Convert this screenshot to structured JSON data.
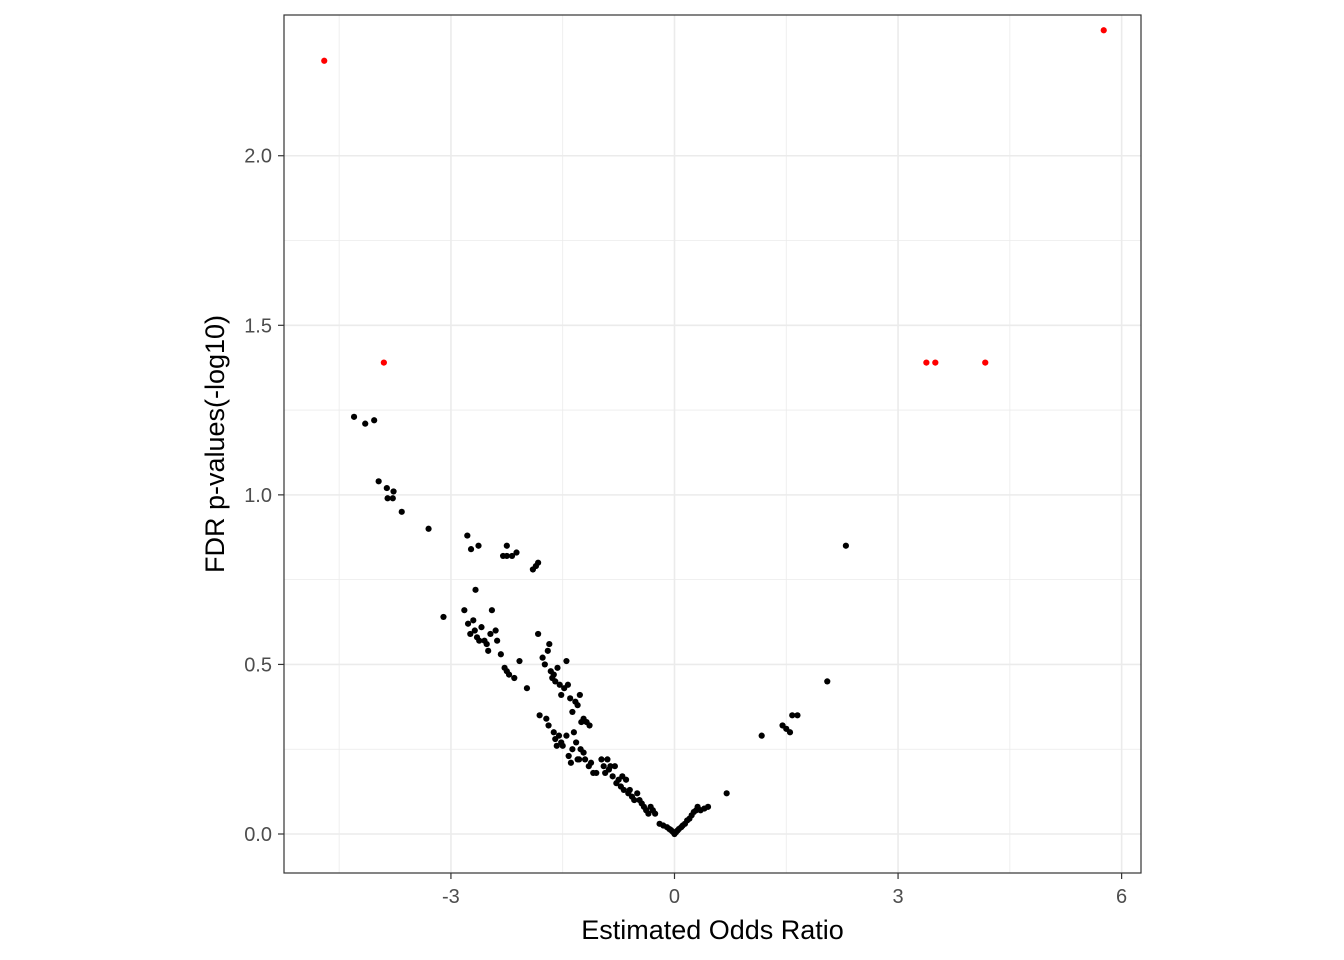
{
  "chart_data": {
    "type": "scatter",
    "title": "",
    "xlabel": "Estimated Odds Ratio",
    "ylabel": "FDR p-values(-log10)",
    "xlim": [
      -5.24,
      6.26
    ],
    "ylim": [
      -0.115,
      2.415
    ],
    "x_ticks": [
      -3,
      0,
      3,
      6
    ],
    "x_tick_labels": [
      "-3",
      "0",
      "3",
      "6"
    ],
    "y_ticks": [
      0.0,
      0.5,
      1.0,
      1.5,
      2.0
    ],
    "y_tick_labels": [
      "0.0",
      "0.5",
      "1.0",
      "1.5",
      "2.0"
    ],
    "grid": true,
    "legend": "none",
    "colors": {
      "significant": "#ff0000",
      "other": "#000000",
      "grid": "#ebebeb",
      "panel_border": "#333333"
    },
    "series": [
      {
        "color": "#ff0000",
        "points": [
          [
            -4.7,
            2.28
          ],
          [
            -3.9,
            1.39
          ],
          [
            5.76,
            2.37
          ],
          [
            3.38,
            1.39
          ],
          [
            3.5,
            1.39
          ],
          [
            4.17,
            1.39
          ]
        ]
      },
      {
        "color": "#000000",
        "points": [
          [
            -4.3,
            1.23
          ],
          [
            -4.15,
            1.21
          ],
          [
            -4.03,
            1.22
          ],
          [
            -3.97,
            1.04
          ],
          [
            -3.86,
            1.02
          ],
          [
            -3.85,
            0.99
          ],
          [
            -3.77,
            1.01
          ],
          [
            -3.78,
            0.99
          ],
          [
            -3.66,
            0.95
          ],
          [
            -3.3,
            0.9
          ],
          [
            -2.78,
            0.88
          ],
          [
            -2.73,
            0.84
          ],
          [
            -2.63,
            0.85
          ],
          [
            -2.67,
            0.72
          ],
          [
            -2.25,
            0.85
          ],
          [
            -2.3,
            0.82
          ],
          [
            -2.25,
            0.82
          ],
          [
            -2.18,
            0.82
          ],
          [
            -2.12,
            0.83
          ],
          [
            -1.9,
            0.78
          ],
          [
            -1.86,
            0.79
          ],
          [
            -1.83,
            0.8
          ],
          [
            -3.1,
            0.64
          ],
          [
            -2.82,
            0.66
          ],
          [
            -2.77,
            0.62
          ],
          [
            -2.74,
            0.59
          ],
          [
            -2.7,
            0.63
          ],
          [
            -2.68,
            0.6
          ],
          [
            -2.65,
            0.58
          ],
          [
            -2.62,
            0.57
          ],
          [
            -2.59,
            0.61
          ],
          [
            -2.55,
            0.57
          ],
          [
            -2.52,
            0.56
          ],
          [
            -2.5,
            0.54
          ],
          [
            -2.45,
            0.66
          ],
          [
            -2.47,
            0.59
          ],
          [
            -2.4,
            0.6
          ],
          [
            -2.38,
            0.57
          ],
          [
            -2.33,
            0.53
          ],
          [
            -2.28,
            0.49
          ],
          [
            -2.25,
            0.48
          ],
          [
            -2.22,
            0.47
          ],
          [
            -2.15,
            0.46
          ],
          [
            -2.08,
            0.51
          ],
          [
            -1.98,
            0.43
          ],
          [
            -1.83,
            0.59
          ],
          [
            -1.77,
            0.52
          ],
          [
            -1.74,
            0.5
          ],
          [
            -1.7,
            0.54
          ],
          [
            -1.68,
            0.56
          ],
          [
            -1.66,
            0.48
          ],
          [
            -1.64,
            0.46
          ],
          [
            -1.62,
            0.47
          ],
          [
            -1.6,
            0.45
          ],
          [
            -1.57,
            0.49
          ],
          [
            -1.54,
            0.44
          ],
          [
            -1.52,
            0.41
          ],
          [
            -1.48,
            0.43
          ],
          [
            -1.45,
            0.51
          ],
          [
            -1.43,
            0.44
          ],
          [
            -1.4,
            0.4
          ],
          [
            -1.37,
            0.36
          ],
          [
            -1.33,
            0.39
          ],
          [
            -1.3,
            0.38
          ],
          [
            -1.27,
            0.41
          ],
          [
            -1.25,
            0.33
          ],
          [
            -1.22,
            0.34
          ],
          [
            -1.18,
            0.33
          ],
          [
            -1.14,
            0.32
          ],
          [
            -1.81,
            0.35
          ],
          [
            -1.72,
            0.34
          ],
          [
            -1.69,
            0.32
          ],
          [
            -1.62,
            0.3
          ],
          [
            -1.6,
            0.28
          ],
          [
            -1.58,
            0.26
          ],
          [
            -1.55,
            0.29
          ],
          [
            -1.52,
            0.27
          ],
          [
            -1.5,
            0.26
          ],
          [
            -1.45,
            0.29
          ],
          [
            -1.42,
            0.23
          ],
          [
            -1.39,
            0.21
          ],
          [
            -1.37,
            0.25
          ],
          [
            -1.35,
            0.3
          ],
          [
            -1.32,
            0.27
          ],
          [
            -1.3,
            0.22
          ],
          [
            -1.28,
            0.22
          ],
          [
            -1.26,
            0.25
          ],
          [
            -1.22,
            0.24
          ],
          [
            -1.2,
            0.22
          ],
          [
            -1.15,
            0.2
          ],
          [
            -1.12,
            0.21
          ],
          [
            -1.09,
            0.18
          ],
          [
            -1.05,
            0.18
          ],
          [
            -0.98,
            0.22
          ],
          [
            -0.95,
            0.2
          ],
          [
            -0.93,
            0.18
          ],
          [
            -0.9,
            0.22
          ],
          [
            -0.88,
            0.19
          ],
          [
            -0.86,
            0.2
          ],
          [
            -0.83,
            0.17
          ],
          [
            -0.8,
            0.2
          ],
          [
            -0.78,
            0.15
          ],
          [
            -0.75,
            0.16
          ],
          [
            -0.72,
            0.14
          ],
          [
            -0.7,
            0.17
          ],
          [
            -0.68,
            0.13
          ],
          [
            -0.65,
            0.16
          ],
          [
            -0.62,
            0.12
          ],
          [
            -0.6,
            0.13
          ],
          [
            -0.57,
            0.11
          ],
          [
            -0.54,
            0.1
          ],
          [
            -0.5,
            0.12
          ],
          [
            -0.47,
            0.1
          ],
          [
            -0.44,
            0.09
          ],
          [
            -0.41,
            0.08
          ],
          [
            -0.38,
            0.07
          ],
          [
            -0.35,
            0.06
          ],
          [
            -0.32,
            0.08
          ],
          [
            -0.29,
            0.07
          ],
          [
            -0.26,
            0.06
          ],
          [
            -0.2,
            0.03
          ],
          [
            -0.15,
            0.025
          ],
          [
            -0.1,
            0.02
          ],
          [
            -0.07,
            0.015
          ],
          [
            -0.05,
            0.012
          ],
          [
            -0.03,
            0.008
          ],
          [
            -0.01,
            0.004
          ],
          [
            0.0,
            0.0
          ],
          [
            0.02,
            0.005
          ],
          [
            0.04,
            0.01
          ],
          [
            0.06,
            0.015
          ],
          [
            0.09,
            0.02
          ],
          [
            0.11,
            0.025
          ],
          [
            0.14,
            0.03
          ],
          [
            0.17,
            0.04
          ],
          [
            0.2,
            0.045
          ],
          [
            0.23,
            0.055
          ],
          [
            0.26,
            0.065
          ],
          [
            0.29,
            0.07
          ],
          [
            0.31,
            0.08
          ],
          [
            0.35,
            0.07
          ],
          [
            0.4,
            0.075
          ],
          [
            0.45,
            0.08
          ],
          [
            0.7,
            0.12
          ],
          [
            1.17,
            0.29
          ],
          [
            1.45,
            0.32
          ],
          [
            1.5,
            0.31
          ],
          [
            1.55,
            0.3
          ],
          [
            1.58,
            0.35
          ],
          [
            1.65,
            0.35
          ],
          [
            2.05,
            0.45
          ],
          [
            2.3,
            0.85
          ]
        ]
      }
    ]
  }
}
